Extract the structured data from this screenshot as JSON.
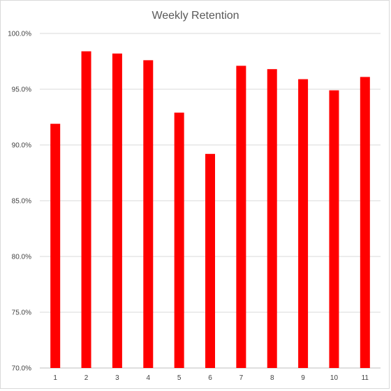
{
  "chart_data": {
    "type": "bar",
    "title": "Weekly Retention",
    "xlabel": "",
    "ylabel": "",
    "categories": [
      "1",
      "2",
      "3",
      "4",
      "5",
      "6",
      "7",
      "8",
      "9",
      "10",
      "11"
    ],
    "values": [
      91.9,
      98.4,
      98.2,
      97.6,
      92.9,
      89.2,
      97.1,
      96.8,
      95.9,
      94.9,
      96.1
    ],
    "ylim": [
      70,
      100
    ],
    "yticks": [
      70,
      75,
      80,
      85,
      90,
      95,
      100
    ],
    "ytick_labels": [
      "70.0%",
      "75.0%",
      "80.0%",
      "85.0%",
      "90.0%",
      "95.0%",
      "100.0%"
    ],
    "grid": true,
    "legend": "none",
    "bar_color": "#ff0000"
  }
}
